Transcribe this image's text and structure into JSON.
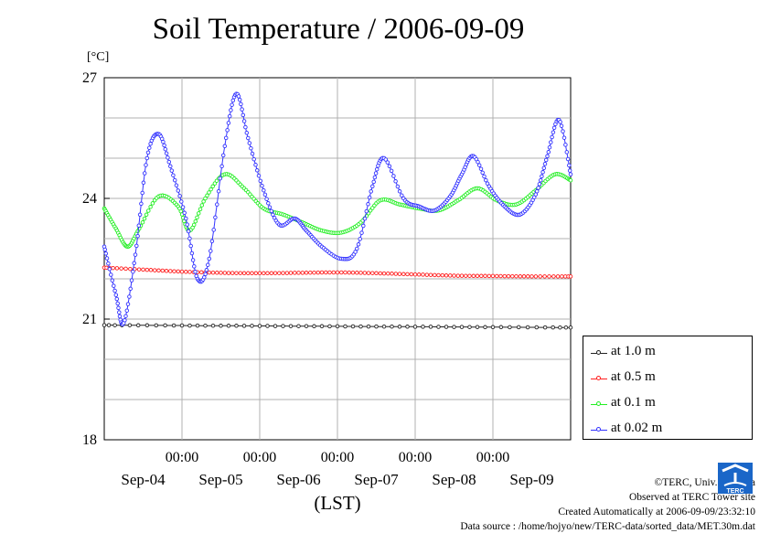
{
  "chart_data": {
    "type": "line",
    "title": "Soil Temperature / 2006-09-09",
    "ylabel": "[°C]",
    "xlabel": "(LST)",
    "ylim": [
      18,
      27
    ],
    "yticks": [
      "27",
      "24",
      "21",
      "18"
    ],
    "xlim": [
      0,
      6
    ],
    "xtick_time_labels": [
      "00:00",
      "00:00",
      "00:00",
      "00:00",
      "00:00"
    ],
    "xtick_date_labels": [
      "Sep-04",
      "Sep-05",
      "Sep-06",
      "Sep-07",
      "Sep-08",
      "Sep-09"
    ],
    "grid": true,
    "legend_position": "right",
    "series": [
      {
        "name": "at 1.0 m",
        "color": "#222222",
        "x": [
          0,
          1,
          2,
          3,
          4,
          5,
          6
        ],
        "y": [
          20.85,
          20.84,
          20.83,
          20.82,
          20.81,
          20.8,
          20.79
        ]
      },
      {
        "name": "at 0.5 m",
        "color": "#ff2020",
        "x": [
          0,
          0.5,
          1,
          1.5,
          2,
          2.5,
          3,
          3.5,
          4,
          4.5,
          5,
          5.5,
          6
        ],
        "y": [
          22.28,
          22.23,
          22.18,
          22.15,
          22.14,
          22.15,
          22.16,
          22.14,
          22.11,
          22.08,
          22.07,
          22.06,
          22.06
        ]
      },
      {
        "name": "at 0.1 m",
        "color": "#22ee22",
        "x": [
          0,
          0.15,
          0.3,
          0.45,
          0.7,
          0.95,
          1.1,
          1.3,
          1.55,
          1.8,
          2.05,
          2.3,
          2.55,
          2.8,
          3.05,
          3.3,
          3.55,
          3.8,
          4.05,
          4.3,
          4.55,
          4.8,
          5.05,
          5.3,
          5.55,
          5.8,
          6
        ],
        "y": [
          23.75,
          23.25,
          22.8,
          23.25,
          24.05,
          23.8,
          23.2,
          24.0,
          24.6,
          24.25,
          23.75,
          23.6,
          23.4,
          23.2,
          23.15,
          23.4,
          23.95,
          23.85,
          23.75,
          23.7,
          23.95,
          24.25,
          23.95,
          23.85,
          24.2,
          24.6,
          24.45
        ]
      },
      {
        "name": "at 0.02 m",
        "color": "#3333ff",
        "x": [
          0,
          0.15,
          0.25,
          0.4,
          0.55,
          0.7,
          0.85,
          1.05,
          1.2,
          1.35,
          1.55,
          1.7,
          1.85,
          2.05,
          2.25,
          2.45,
          2.6,
          2.8,
          3.05,
          3.25,
          3.45,
          3.6,
          3.85,
          4.05,
          4.25,
          4.45,
          4.6,
          4.75,
          4.95,
          5.15,
          5.35,
          5.55,
          5.7,
          5.85,
          6
        ],
        "y": [
          22.8,
          21.6,
          20.9,
          22.6,
          25.0,
          25.6,
          24.8,
          23.5,
          22.0,
          22.5,
          25.3,
          26.6,
          25.5,
          24.2,
          23.35,
          23.5,
          23.2,
          22.8,
          22.5,
          22.75,
          24.3,
          25.0,
          24.0,
          23.8,
          23.7,
          24.05,
          24.6,
          25.05,
          24.3,
          23.8,
          23.6,
          24.1,
          25.05,
          25.95,
          24.6
        ]
      }
    ]
  },
  "legend": {
    "items": [
      "at 1.0 m",
      "at 0.5 m",
      "at 0.1 m",
      "at 0.02 m"
    ]
  },
  "credits": {
    "copyright": "©TERC, Univ. Tsukuba",
    "observed": "Observed at TERC Tower site",
    "created": "Created Automatically at 2006-09-09/23:32:10",
    "source": "Data source : /home/hojyo/new/TERC-data/sorted_data/MET.30m.dat"
  },
  "logo": {
    "text": "TERC",
    "icon": "terc-logo-icon"
  }
}
